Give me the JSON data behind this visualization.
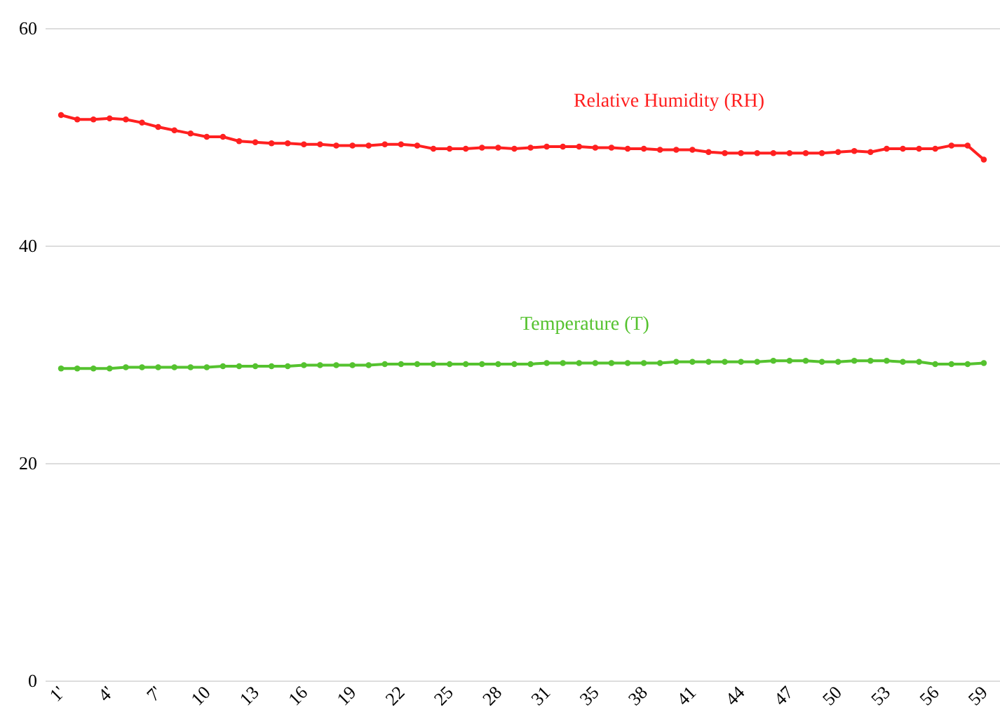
{
  "chart_data": {
    "type": "line",
    "categories": [
      "1'",
      null,
      null,
      "4'",
      null,
      null,
      "7'",
      null,
      null,
      "10",
      null,
      null,
      "13",
      null,
      null,
      "16",
      null,
      null,
      "19",
      null,
      null,
      "22",
      null,
      null,
      "25",
      null,
      null,
      "28",
      null,
      null,
      "31",
      null,
      null,
      "35",
      null,
      null,
      "38",
      null,
      null,
      "41",
      null,
      null,
      "44",
      null,
      null,
      "47",
      null,
      null,
      "50",
      null,
      null,
      "53",
      null,
      null,
      "56",
      null,
      null,
      "59"
    ],
    "series": [
      {
        "name": "Relative Humidity (RH)",
        "color": "#ff2020",
        "values": [
          52.0,
          51.6,
          51.6,
          51.7,
          51.6,
          51.3,
          50.9,
          50.6,
          50.3,
          50.0,
          50.0,
          49.6,
          49.5,
          49.4,
          49.4,
          49.3,
          49.3,
          49.2,
          49.2,
          49.2,
          49.3,
          49.3,
          49.2,
          48.9,
          48.9,
          48.9,
          49.0,
          49.0,
          48.9,
          49.0,
          49.1,
          49.1,
          49.1,
          49.0,
          49.0,
          48.9,
          48.9,
          48.8,
          48.8,
          48.8,
          48.6,
          48.5,
          48.5,
          48.5,
          48.5,
          48.5,
          48.5,
          48.5,
          48.6,
          48.7,
          48.6,
          48.9,
          48.9,
          48.9,
          48.9,
          49.2,
          49.2,
          47.9
        ]
      },
      {
        "name": "Temperature (T)",
        "color": "#55c22f",
        "values": [
          28.7,
          28.7,
          28.7,
          28.7,
          28.8,
          28.8,
          28.8,
          28.8,
          28.8,
          28.8,
          28.9,
          28.9,
          28.9,
          28.9,
          28.9,
          29.0,
          29.0,
          29.0,
          29.0,
          29.0,
          29.1,
          29.1,
          29.1,
          29.1,
          29.1,
          29.1,
          29.1,
          29.1,
          29.1,
          29.1,
          29.2,
          29.2,
          29.2,
          29.2,
          29.2,
          29.2,
          29.2,
          29.2,
          29.3,
          29.3,
          29.3,
          29.3,
          29.3,
          29.3,
          29.4,
          29.4,
          29.4,
          29.3,
          29.3,
          29.4,
          29.4,
          29.4,
          29.3,
          29.3,
          29.1,
          29.1,
          29.1,
          29.2
        ]
      }
    ],
    "ylim": [
      0,
      60
    ],
    "yticks": [
      0,
      20,
      40,
      60
    ],
    "grid": "y",
    "legend": false,
    "marker": "circle",
    "line_style": "solid"
  }
}
